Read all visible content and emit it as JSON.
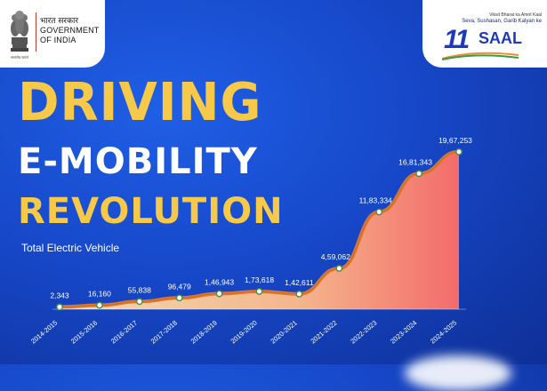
{
  "header": {
    "gov_hindi": "भारत सरकार",
    "gov_line1": "GOVERNMENT",
    "gov_line2": "OF INDIA",
    "emblem_motto": "सत्यमेव जयते",
    "saal_tagline1": "Viksit Bharat ka Amrit Kaal",
    "saal_tagline2": "Seva, Sushasan, Garib Kalyan ke",
    "saal_number": "11",
    "saal_word": "SAAL"
  },
  "headline": {
    "line1": "DRIVING",
    "line2": "E-MOBILITY",
    "line3": "REVOLUTION"
  },
  "colors": {
    "accent_yellow": "#f7c948",
    "line_orange": "#e07a2e",
    "fill_top": "#f36b6b",
    "fill_bottom": "#fde2b0",
    "background": "#1748c9"
  },
  "chart_data": {
    "type": "area",
    "title": "Total Electric Vehicle",
    "categories": [
      "2014-2015",
      "2015-2016",
      "2016-2017",
      "2017-2018",
      "2018-2019",
      "2019-2020",
      "2020-2021",
      "2021-2022",
      "2022-2023",
      "2023-2024",
      "2024-2025"
    ],
    "series": [
      {
        "name": "Total Electric Vehicle",
        "values": [
          2343,
          16160,
          55838,
          96479,
          146943,
          173618,
          142611,
          459062,
          1183334,
          1681343,
          1967253
        ]
      }
    ],
    "labels": [
      "2,343",
      "16,160",
      "55,838",
      "96,479",
      "1,46,943",
      "1,73,618",
      "1,42,611",
      "4,59,062",
      "11,83,334",
      "16,81,343",
      "19,67,253"
    ],
    "ylim": [
      0,
      2000000
    ]
  }
}
